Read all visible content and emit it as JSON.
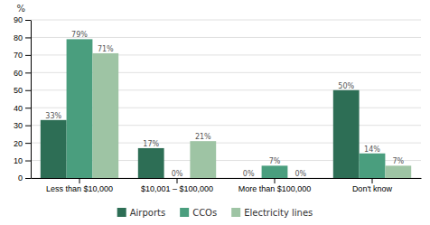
{
  "chart_data": {
    "type": "bar",
    "ylabel": "%",
    "categories": [
      "Less than $10,000",
      "$10,001 – $100,000",
      "More than $100,000",
      "Don't know"
    ],
    "series": [
      {
        "name": "Airports",
        "color": "#2d6e55",
        "values": [
          33,
          17,
          0,
          50
        ],
        "value_labels": [
          "33%",
          "17%",
          "0%",
          "50%"
        ]
      },
      {
        "name": "CCOs",
        "color": "#4a9e7e",
        "values": [
          79,
          0,
          7,
          14
        ],
        "value_labels": [
          "79%",
          "0%",
          "7%",
          "14%"
        ]
      },
      {
        "name": "Electricity lines",
        "color": "#9ec4a4",
        "values": [
          71,
          21,
          0,
          7
        ],
        "value_labels": [
          "71%",
          "21%",
          "0%",
          "7%"
        ]
      }
    ],
    "ylim": [
      0,
      90
    ],
    "yticks": [
      0,
      10,
      20,
      30,
      40,
      50,
      60,
      70,
      80,
      90
    ],
    "grid": true,
    "legend": "bottom",
    "data_labels": true
  }
}
